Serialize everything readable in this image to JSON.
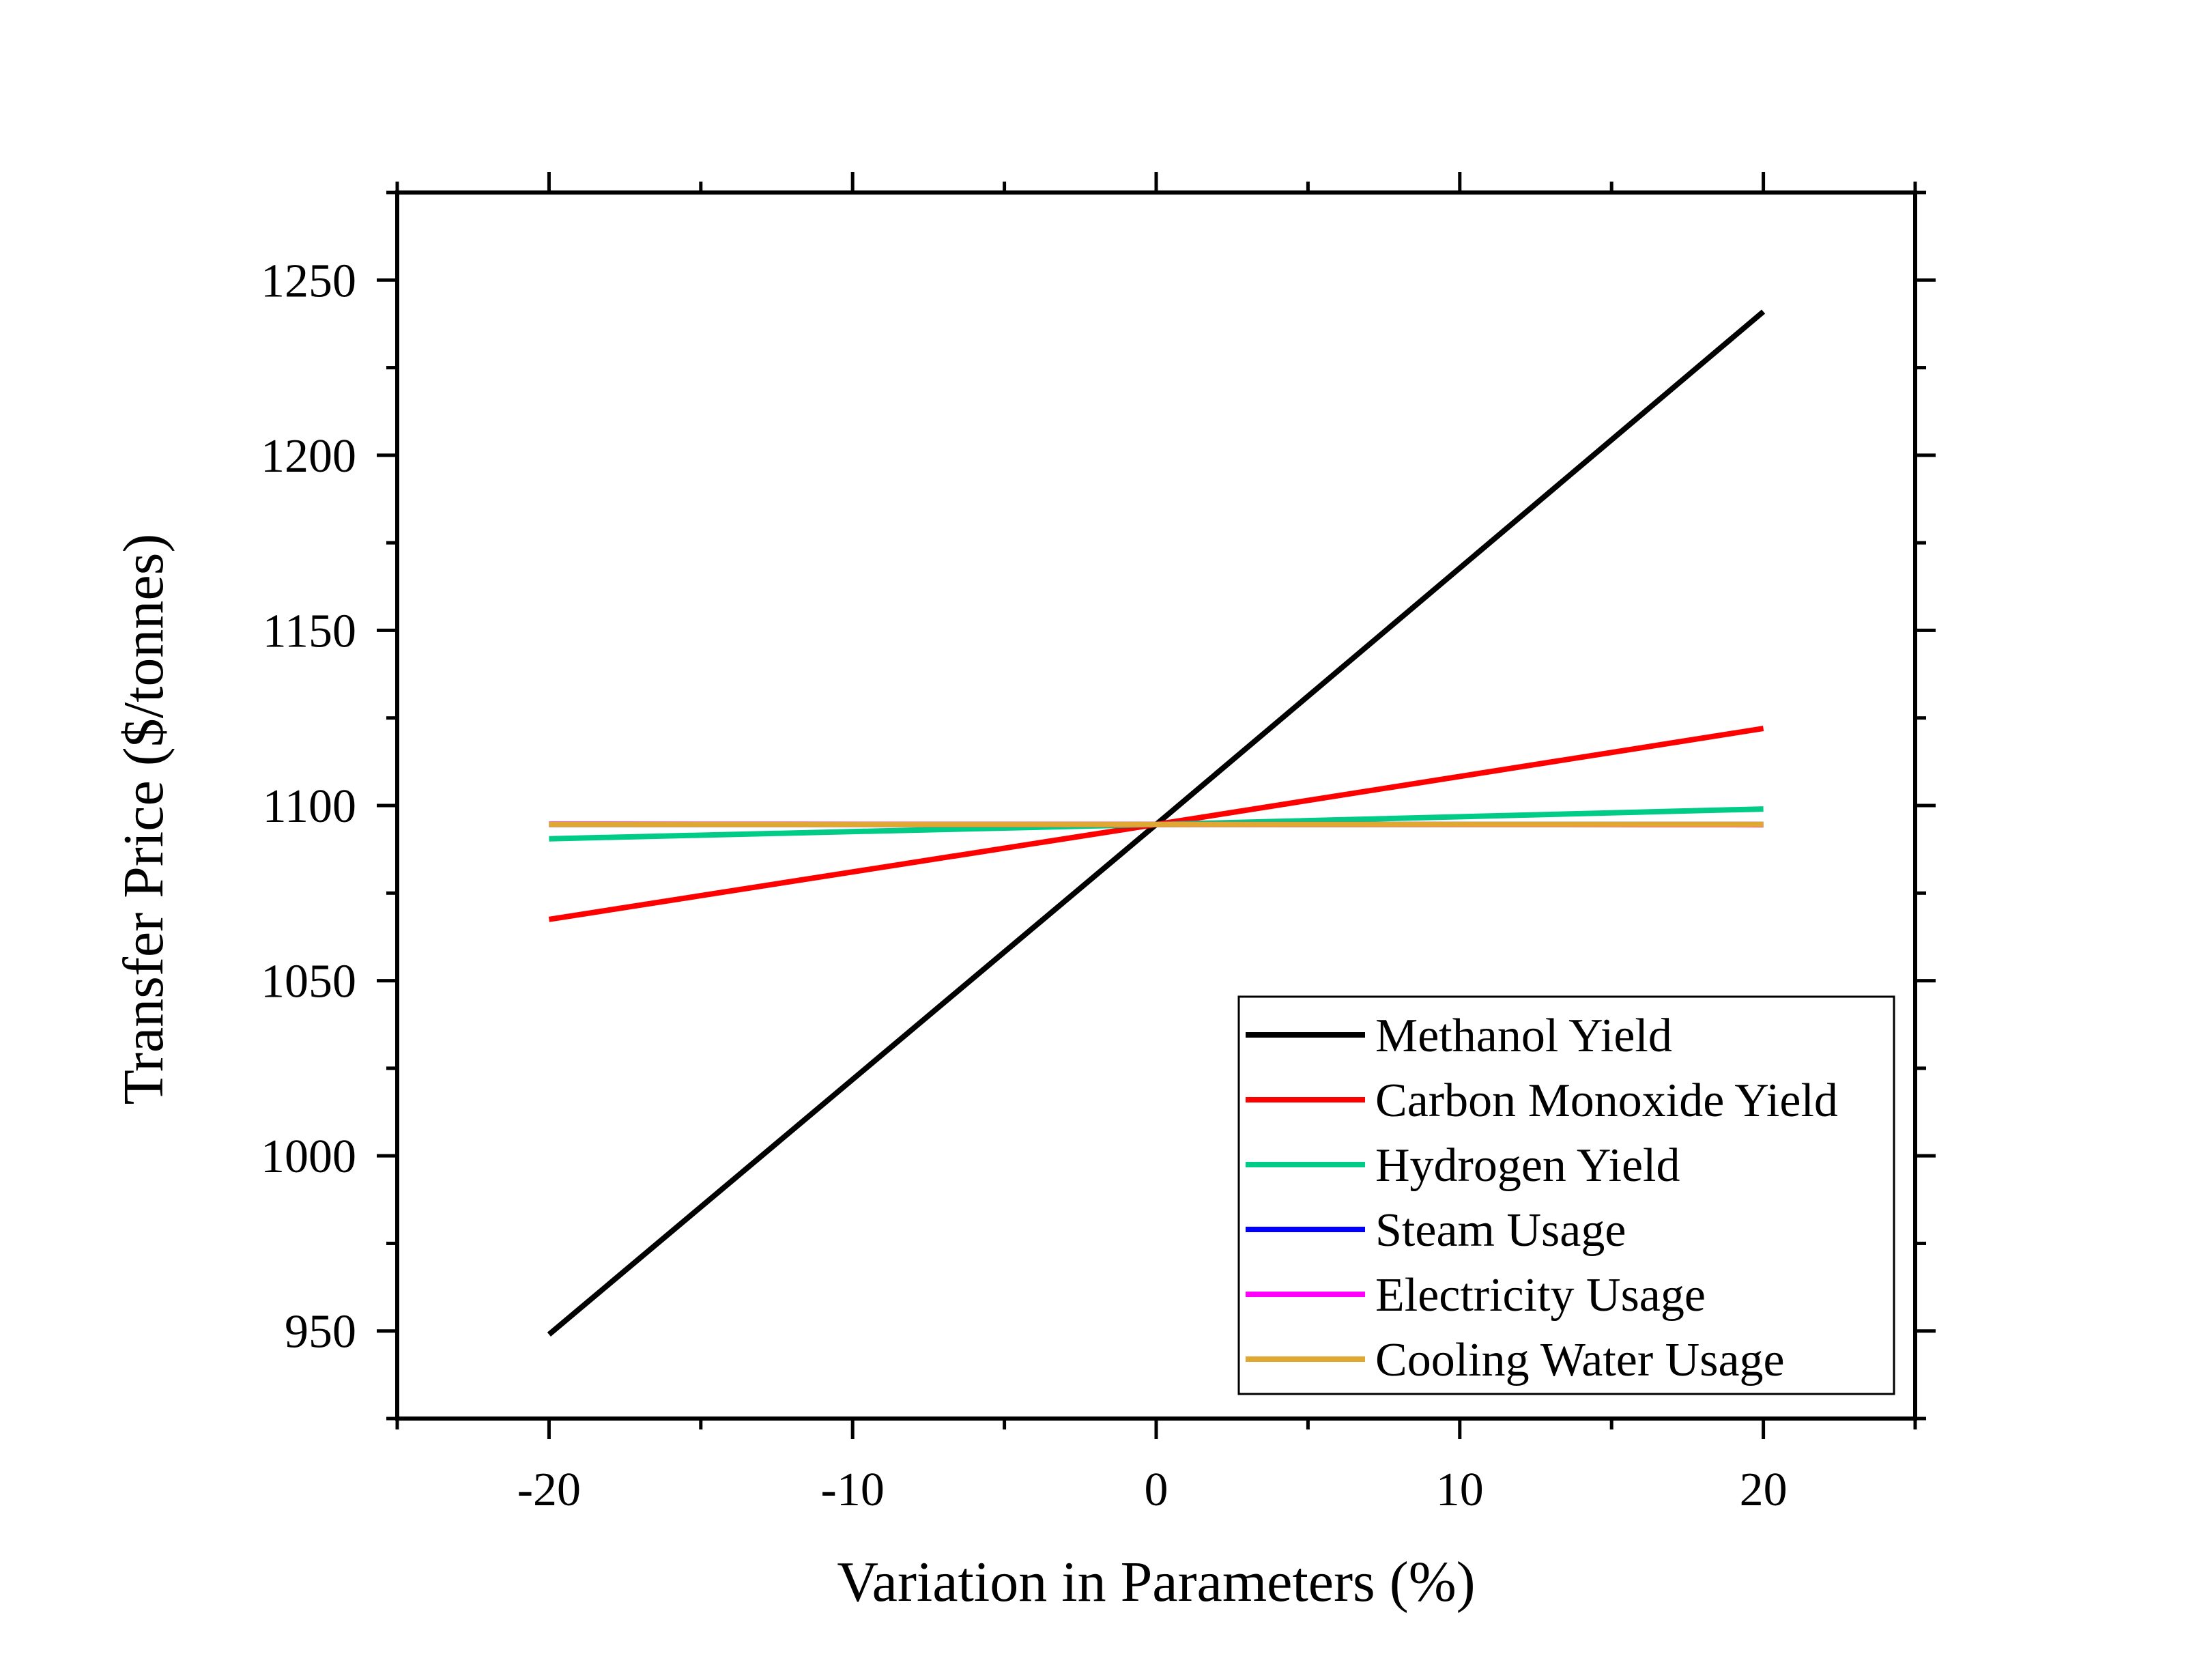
{
  "chart_data": {
    "type": "line",
    "title": "",
    "xlabel": "Variation in Parameters (%)",
    "ylabel": "Transfer Price ($/tonnes)",
    "xlim": [
      -25,
      25
    ],
    "ylim": [
      925,
      1275
    ],
    "x_ticks": [
      -20,
      -10,
      0,
      10,
      20
    ],
    "x_tick_labels": [
      "-20",
      "-10",
      "0",
      "10",
      "20"
    ],
    "y_ticks": [
      950,
      1000,
      1050,
      1100,
      1150,
      1200,
      1250
    ],
    "y_tick_labels": [
      "950",
      "1000",
      "1050",
      "1100",
      "1150",
      "1200",
      "1250"
    ],
    "grid": false,
    "legend_position": "bottom-right",
    "series": [
      {
        "name": "Methanol Yield",
        "color": "#000000",
        "x": [
          -20,
          0,
          20
        ],
        "y": [
          949,
          1094.6,
          1241
        ]
      },
      {
        "name": "Carbon Monoxide Yield",
        "color": "#ff0000",
        "x": [
          -20,
          0,
          20
        ],
        "y": [
          1067.5,
          1094.6,
          1122
        ]
      },
      {
        "name": "Hydrogen Yield",
        "color": "#00cc88",
        "x": [
          -20,
          0,
          20
        ],
        "y": [
          1090.5,
          1094.6,
          1099
        ]
      },
      {
        "name": "Steam Usage",
        "color": "#0000ff",
        "x": [
          -20,
          0,
          20
        ],
        "y": [
          1094.6,
          1094.6,
          1094.6
        ]
      },
      {
        "name": "Electricity Usage",
        "color": "#ff00ff",
        "x": [
          -20,
          0,
          20
        ],
        "y": [
          1094.7,
          1094.6,
          1094.5
        ]
      },
      {
        "name": "Cooling Water Usage",
        "color": "#e0a830",
        "x": [
          -20,
          0,
          20
        ],
        "y": [
          1094.6,
          1094.6,
          1094.6
        ]
      }
    ]
  }
}
